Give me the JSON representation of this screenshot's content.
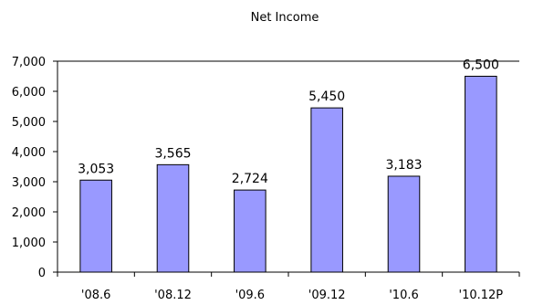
{
  "chart_data": {
    "type": "bar",
    "title": "Net Income",
    "categories": [
      "'08.6",
      "'08.12",
      "'09.6",
      "'09.12",
      "'10.6",
      "'10.12P"
    ],
    "values": [
      3053,
      3565,
      2724,
      5450,
      3183,
      6500
    ],
    "data_labels": [
      "3,053",
      "3,565",
      "2,724",
      "5,450",
      "3,183",
      "6,500"
    ],
    "ylim": [
      0,
      7000
    ],
    "yticks": [
      0,
      1000,
      2000,
      3000,
      4000,
      5000,
      6000,
      7000
    ],
    "ytick_labels": [
      "0",
      "1,000",
      "2,000",
      "3,000",
      "4,000",
      "5,000",
      "6,000",
      "7,000"
    ],
    "grid": "horizontal lines at 7,000 only",
    "legend": "none",
    "bar_color": "#9999ff",
    "bar_border_color": "#000000"
  }
}
